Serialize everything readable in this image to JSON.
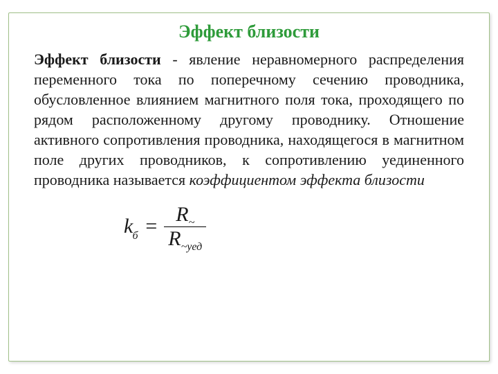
{
  "colors": {
    "title": "#2e9b3a",
    "body": "#1a1a1a",
    "frame_border": "#a0c088",
    "frac_rule": "#000000"
  },
  "fontsize": {
    "title": 26,
    "body": 22,
    "formula_main": 30,
    "formula_sub": 16
  },
  "title": "Эффект близости",
  "paragraph": {
    "term": "Эффект близости",
    "main": " - явление неравномерного распределения переменного тока по поперечному сечению проводника, обусловленное влиянием магнитного поля тока, проходящего по рядом расположенному другому проводнику. Отношение активного сопротивления проводника, находящегося в магнитном поле других проводников, к сопротивлению уединенного проводника называется ",
    "coeff": "коэффициентом эффекта близости"
  },
  "formula": {
    "lhs_var": "k",
    "lhs_sub": "б",
    "eq": "=",
    "numer_var": "R",
    "numer_sub": "~",
    "denom_var": "R",
    "denom_sub_tilde": "~",
    "denom_sub_yed": "уед"
  }
}
